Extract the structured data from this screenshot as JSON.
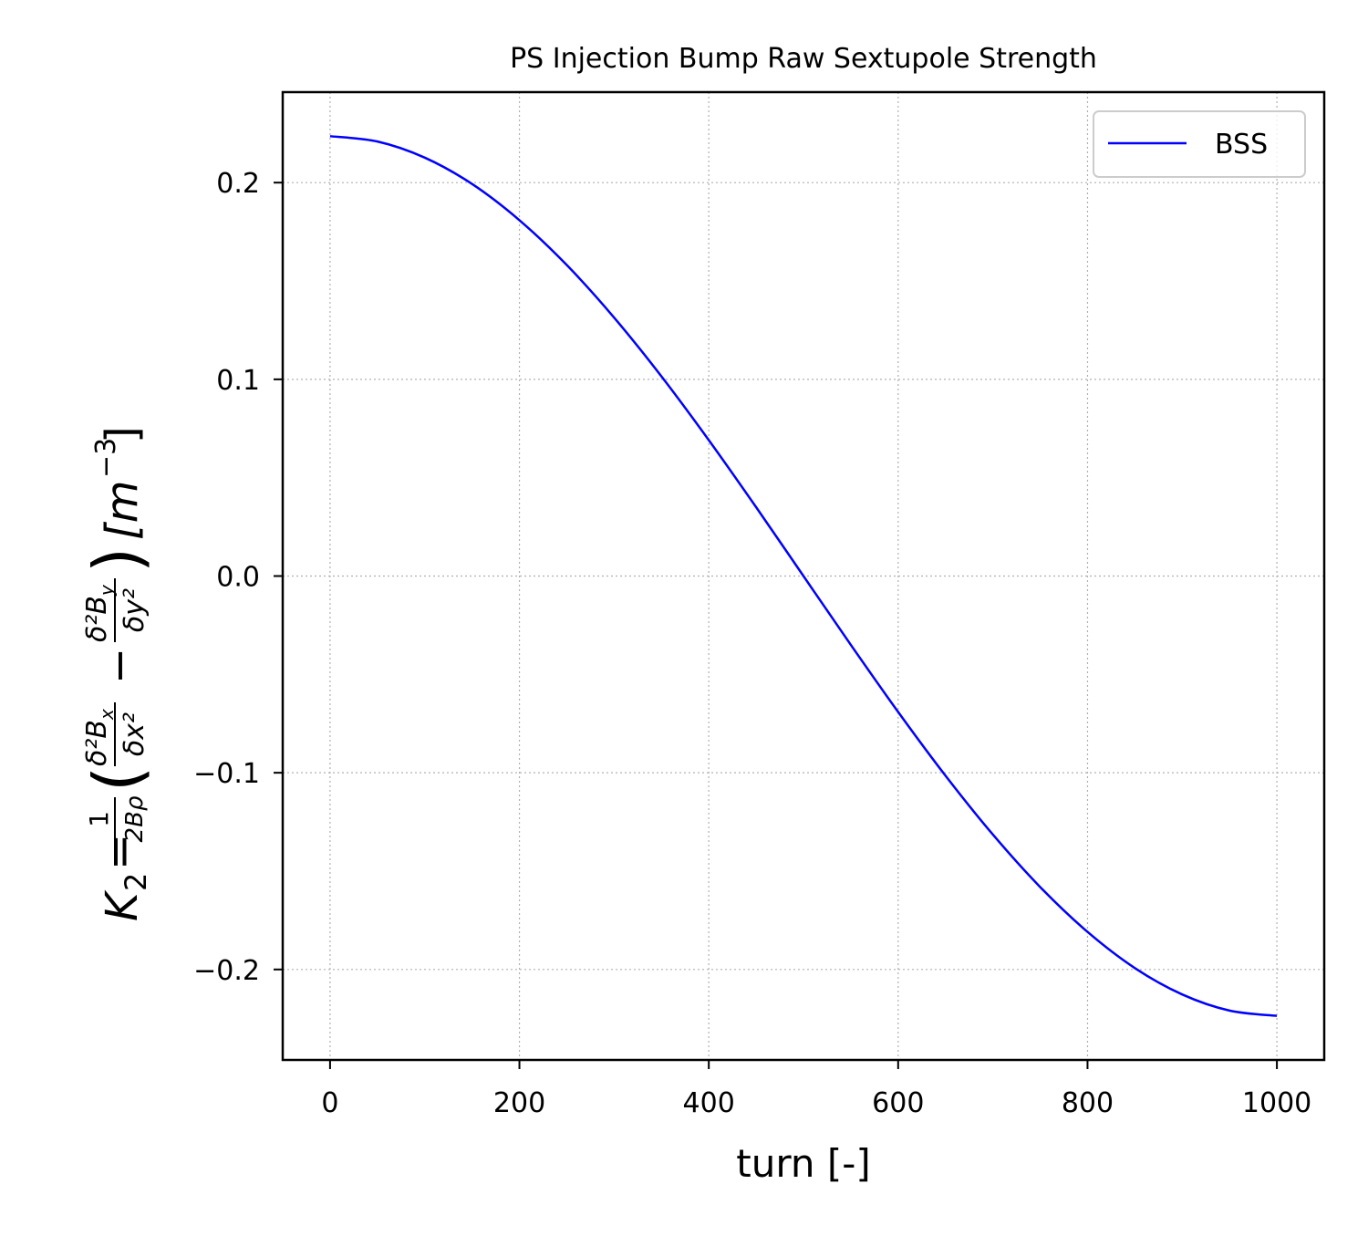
{
  "chart_data": {
    "type": "line",
    "title": "PS Injection Bump Raw Sextupole Strength",
    "xlabel": "turn [-]",
    "ylabel": "K_2 = 1/(2Bρ) (δ²B_x/δx² − δ²B_y/δy²) [m^-3]",
    "ylabel_parts": {
      "k": "K",
      "k_sub": "2",
      "eq": "=",
      "frac_num": "1",
      "frac_den": "2Bρ",
      "paren_open": "(",
      "t1_num": "δ²B",
      "t1_num_sub": "x",
      "t1_den": "δx²",
      "minus": "−",
      "t2_num": "δ²B",
      "t2_num_sub": "y",
      "t2_den": "δy²",
      "paren_close": ")",
      "unit": "[m",
      "unit_exp": "−3",
      "unit_close": "]"
    },
    "xlim": [
      -50,
      1050
    ],
    "ylim": [
      -0.246,
      0.246
    ],
    "x_ticks": [
      0,
      200,
      400,
      600,
      800,
      1000
    ],
    "x_tick_labels": [
      "0",
      "200",
      "400",
      "600",
      "800",
      "1000"
    ],
    "y_ticks": [
      -0.2,
      -0.1,
      0.0,
      0.1,
      0.2
    ],
    "y_tick_labels": [
      "−0.2",
      "−0.1",
      "0.0",
      "0.1",
      "0.2"
    ],
    "grid": true,
    "legend_position": "top-right",
    "series": [
      {
        "name": "BSS",
        "color": "#0000ff",
        "x": [
          0,
          50,
          100,
          150,
          200,
          250,
          300,
          350,
          400,
          450,
          500,
          550,
          600,
          650,
          700,
          750,
          800,
          850,
          900,
          950,
          1000
        ],
        "y": [
          0.2236,
          0.2209,
          0.2127,
          0.1993,
          0.1809,
          0.1581,
          0.1314,
          0.1015,
          0.0691,
          0.035,
          0.0,
          -0.035,
          -0.0691,
          -0.1015,
          -0.1314,
          -0.1581,
          -0.1809,
          -0.1993,
          -0.2127,
          -0.2209,
          -0.2236
        ]
      }
    ]
  }
}
